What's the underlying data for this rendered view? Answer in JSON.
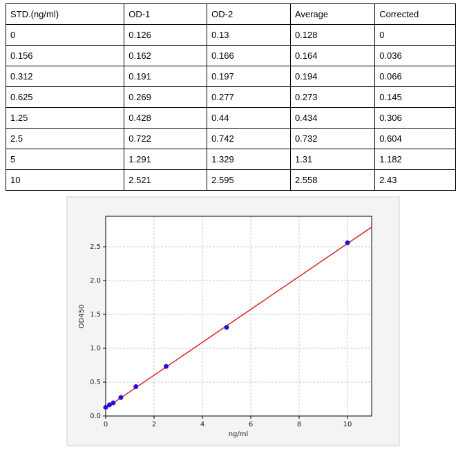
{
  "table": {
    "header": [
      "STD.(ng/ml)",
      "OD-1",
      "OD-2",
      "Average",
      "Corrected"
    ],
    "rows": [
      [
        "0",
        "0.126",
        "0.13",
        "0.128",
        "0"
      ],
      [
        "0.156",
        "0.162",
        "0.166",
        "0.164",
        "0.036"
      ],
      [
        "0.312",
        "0.191",
        "0.197",
        "0.194",
        "0.066"
      ],
      [
        "0.625",
        "0.269",
        "0.277",
        "0.273",
        "0.145"
      ],
      [
        "1.25",
        "0.428",
        "0.44",
        "0.434",
        "0.306"
      ],
      [
        "2.5",
        "0.722",
        "0.742",
        "0.732",
        "0.604"
      ],
      [
        "5",
        "1.291",
        "1.329",
        "1.31",
        "1.182"
      ],
      [
        "10",
        "2.521",
        "2.595",
        "2.558",
        "2.43"
      ]
    ]
  },
  "chart_data": {
    "type": "scatter",
    "xlabel": "ng/ml",
    "ylabel": "OD450",
    "x": [
      0,
      0.156,
      0.312,
      0.625,
      1.25,
      2.5,
      5,
      10
    ],
    "values": [
      0.128,
      0.164,
      0.194,
      0.273,
      0.434,
      0.732,
      1.31,
      2.558
    ],
    "color": "#2a0fd0",
    "fit": {
      "x": [
        0,
        11
      ],
      "values": [
        0.116,
        2.79
      ],
      "color": "#d62728"
    },
    "xlim": [
      0,
      11
    ],
    "xticks": [
      0,
      2,
      4,
      6,
      8,
      10
    ],
    "ylim": [
      0,
      2.95
    ],
    "yticks": [
      {
        "value": 0,
        "label": "0.0"
      },
      0.5,
      {
        "value": 1,
        "label": "1.0"
      },
      1.5,
      {
        "value": 2,
        "label": "2.0"
      },
      2.5
    ],
    "grid": true
  }
}
